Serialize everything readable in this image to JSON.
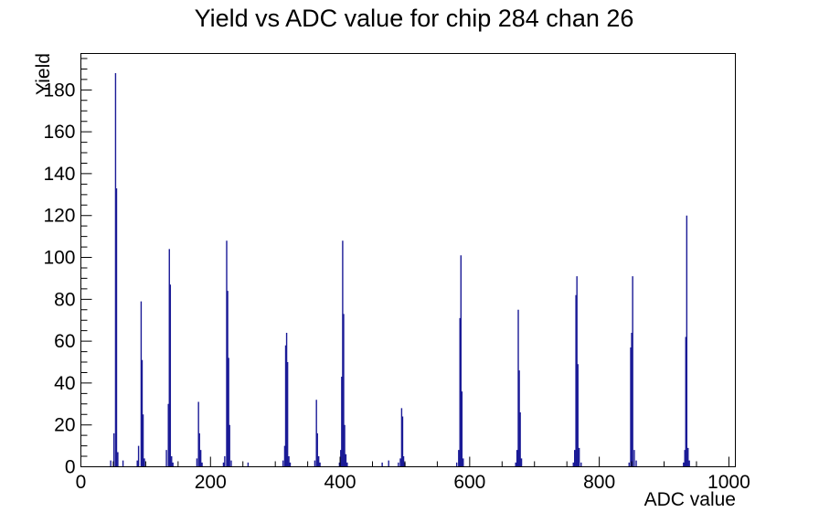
{
  "header": {
    "title": "Yield vs ADC value for chip 284 chan 26"
  },
  "chart_data": {
    "type": "bar",
    "title": "Yield vs ADC value for chip 284 chan 26",
    "xlabel": "ADC value",
    "ylabel": "Yield",
    "xlim": [
      0,
      1010
    ],
    "ylim": [
      0,
      197.4
    ],
    "x_major_ticks": [
      0,
      200,
      400,
      600,
      800,
      1000
    ],
    "x_minor_step": 50,
    "y_major_ticks": [
      0,
      20,
      40,
      60,
      80,
      100,
      120,
      140,
      160,
      180
    ],
    "y_minor_step": 5,
    "grid": false,
    "legend": false,
    "bin_width_adc": 1.4,
    "colors": {
      "line": "#1a1a96",
      "axis": "#000000",
      "background": "#ffffff"
    },
    "points": [
      [
        46,
        3
      ],
      [
        51,
        16
      ],
      [
        53.5,
        188
      ],
      [
        55,
        133
      ],
      [
        57,
        7
      ],
      [
        65,
        3
      ],
      [
        87,
        3
      ],
      [
        89,
        10
      ],
      [
        93,
        79
      ],
      [
        94.5,
        51
      ],
      [
        96,
        25
      ],
      [
        98,
        4
      ],
      [
        132,
        8
      ],
      [
        135,
        30
      ],
      [
        136.5,
        104
      ],
      [
        138,
        87
      ],
      [
        140,
        5
      ],
      [
        142,
        2
      ],
      [
        179,
        4
      ],
      [
        181.5,
        31
      ],
      [
        183,
        16
      ],
      [
        185,
        8
      ],
      [
        187,
        2
      ],
      [
        220,
        2
      ],
      [
        222,
        5
      ],
      [
        225,
        108
      ],
      [
        226.5,
        84
      ],
      [
        228,
        52
      ],
      [
        229.5,
        20
      ],
      [
        232,
        3
      ],
      [
        258,
        2
      ],
      [
        312,
        3
      ],
      [
        314.5,
        10
      ],
      [
        316,
        58
      ],
      [
        317.5,
        64
      ],
      [
        319,
        50
      ],
      [
        321,
        5
      ],
      [
        323,
        2
      ],
      [
        361,
        3
      ],
      [
        363.5,
        32
      ],
      [
        365,
        16
      ],
      [
        367,
        5
      ],
      [
        369,
        2
      ],
      [
        399,
        2
      ],
      [
        401,
        8
      ],
      [
        402.5,
        43
      ],
      [
        404,
        108
      ],
      [
        405.5,
        73
      ],
      [
        407,
        20
      ],
      [
        409,
        6
      ],
      [
        411,
        2
      ],
      [
        465,
        2
      ],
      [
        475,
        3
      ],
      [
        490,
        2
      ],
      [
        493,
        4
      ],
      [
        495,
        28
      ],
      [
        496.5,
        24
      ],
      [
        498,
        5
      ],
      [
        500,
        2
      ],
      [
        580,
        2
      ],
      [
        583,
        8
      ],
      [
        585,
        71
      ],
      [
        586.5,
        101
      ],
      [
        588,
        36
      ],
      [
        590,
        4
      ],
      [
        671,
        2
      ],
      [
        673,
        8
      ],
      [
        675,
        75
      ],
      [
        676.5,
        46
      ],
      [
        678,
        26
      ],
      [
        680,
        4
      ],
      [
        760,
        2
      ],
      [
        762,
        8
      ],
      [
        764,
        82
      ],
      [
        765.5,
        91
      ],
      [
        767,
        49
      ],
      [
        769,
        9
      ],
      [
        772,
        2
      ],
      [
        846,
        2
      ],
      [
        848.5,
        57
      ],
      [
        850,
        64
      ],
      [
        851.5,
        91
      ],
      [
        854,
        8
      ],
      [
        857,
        3
      ],
      [
        930,
        2
      ],
      [
        932,
        8
      ],
      [
        933.5,
        62
      ],
      [
        935,
        120
      ],
      [
        937,
        9
      ],
      [
        939,
        3
      ]
    ]
  }
}
